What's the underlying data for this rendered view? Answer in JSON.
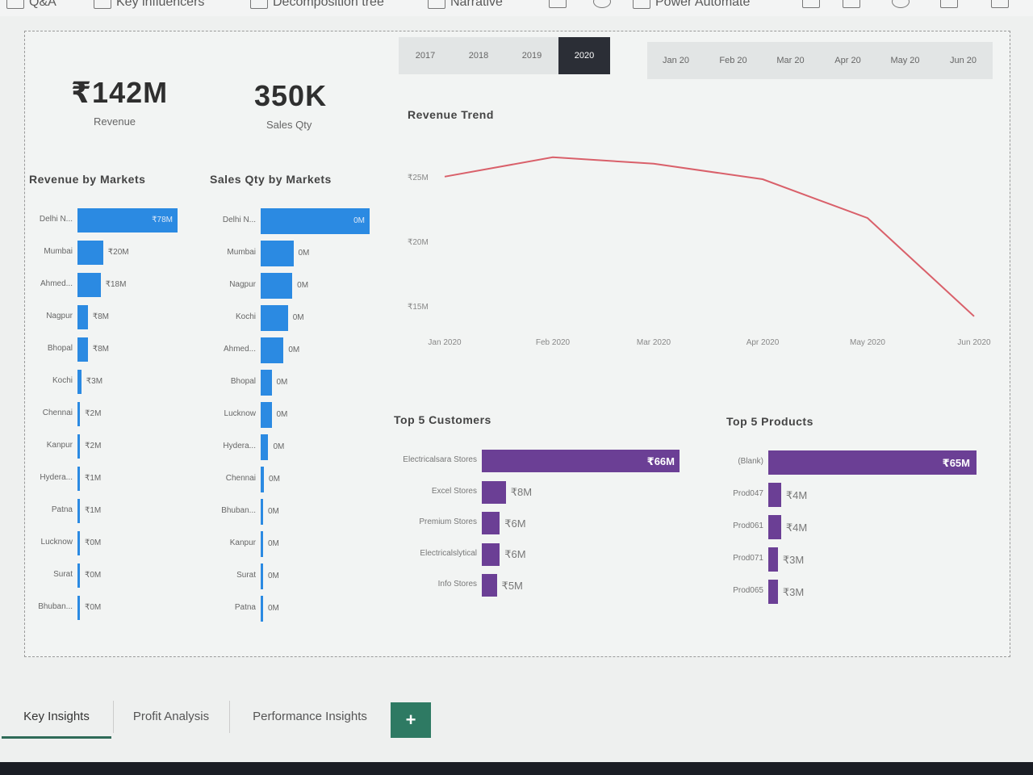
{
  "toolbar": [
    "Q&A",
    "Key influencers",
    "Decomposition tree",
    "Narrative",
    "Power Automate"
  ],
  "slicer_years": [
    "2017",
    "2018",
    "2019",
    "2020"
  ],
  "selected_year": "2020",
  "slicer_months": [
    "Jan 20",
    "Feb 20",
    "Mar 20",
    "Apr 20",
    "May 20",
    "Jun 20"
  ],
  "kpi": {
    "revenue_value": "₹142M",
    "revenue_label": "Revenue",
    "qty_value": "350K",
    "qty_label": "Sales Qty"
  },
  "revenue_by_markets": {
    "title": "Revenue by Markets",
    "rows": [
      {
        "label": "Delhi N...",
        "value": 78,
        "text": "₹78M"
      },
      {
        "label": "Mumbai",
        "value": 20,
        "text": "₹20M"
      },
      {
        "label": "Ahmed...",
        "value": 18,
        "text": "₹18M"
      },
      {
        "label": "Nagpur",
        "value": 8,
        "text": "₹8M"
      },
      {
        "label": "Bhopal",
        "value": 8,
        "text": "₹8M"
      },
      {
        "label": "Kochi",
        "value": 3,
        "text": "₹3M"
      },
      {
        "label": "Chennai",
        "value": 2,
        "text": "₹2M"
      },
      {
        "label": "Kanpur",
        "value": 2,
        "text": "₹2M"
      },
      {
        "label": "Hydera...",
        "value": 1,
        "text": "₹1M"
      },
      {
        "label": "Patna",
        "value": 1,
        "text": "₹1M"
      },
      {
        "label": "Lucknow",
        "value": 0.3,
        "text": "₹0M"
      },
      {
        "label": "Surat",
        "value": 0.3,
        "text": "₹0M"
      },
      {
        "label": "Bhuban...",
        "value": 0.3,
        "text": "₹0M"
      }
    ]
  },
  "qty_by_markets": {
    "title": "Sales Qty by Markets",
    "rows": [
      {
        "label": "Delhi N...",
        "value": 100,
        "text": "0M"
      },
      {
        "label": "Mumbai",
        "value": 30,
        "text": "0M"
      },
      {
        "label": "Nagpur",
        "value": 29,
        "text": "0M"
      },
      {
        "label": "Kochi",
        "value": 25,
        "text": "0M"
      },
      {
        "label": "Ahmed...",
        "value": 21,
        "text": "0M"
      },
      {
        "label": "Bhopal",
        "value": 10,
        "text": "0M"
      },
      {
        "label": "Lucknow",
        "value": 10,
        "text": "0M"
      },
      {
        "label": "Hydera...",
        "value": 7,
        "text": "0M"
      },
      {
        "label": "Chennai",
        "value": 3,
        "text": "0M"
      },
      {
        "label": "Bhuban...",
        "value": 2,
        "text": "0M"
      },
      {
        "label": "Kanpur",
        "value": 1,
        "text": "0M"
      },
      {
        "label": "Surat",
        "value": 1,
        "text": "0M"
      },
      {
        "label": "Patna",
        "value": 1,
        "text": "0M"
      }
    ]
  },
  "chart_data": {
    "type": "line",
    "title": "Revenue Trend",
    "x": [
      "Jan 2020",
      "Feb 2020",
      "Mar 2020",
      "Apr 2020",
      "May 2020",
      "Jun 2020"
    ],
    "y": [
      25.2,
      26.7,
      26.2,
      25.0,
      22.0,
      14.4
    ],
    "y_ticks": [
      "₹25M",
      "₹20M",
      "₹15M"
    ],
    "ylim": [
      14.2,
      27.5
    ],
    "color": "#d9606a"
  },
  "top_customers": {
    "title": "Top 5 Customers",
    "rows": [
      {
        "label": "Electricalsara Stores",
        "value": 66,
        "text": "₹66M"
      },
      {
        "label": "Excel Stores",
        "value": 8,
        "text": "₹8M"
      },
      {
        "label": "Premium Stores",
        "value": 6,
        "text": "₹6M"
      },
      {
        "label": "Electricalslytical",
        "value": 6,
        "text": "₹6M"
      },
      {
        "label": "Info Stores",
        "value": 5,
        "text": "₹5M"
      }
    ]
  },
  "top_products": {
    "title": "Top 5 Products",
    "rows": [
      {
        "label": "(Blank)",
        "value": 65,
        "text": "₹65M"
      },
      {
        "label": "Prod047",
        "value": 4,
        "text": "₹4M"
      },
      {
        "label": "Prod061",
        "value": 4,
        "text": "₹4M"
      },
      {
        "label": "Prod071",
        "value": 3,
        "text": "₹3M"
      },
      {
        "label": "Prod065",
        "value": 3,
        "text": "₹3M"
      }
    ]
  },
  "tabs": [
    "Key Insights",
    "Profit Analysis",
    "Performance Insights"
  ],
  "add_tab": "+",
  "colors": {
    "bar_blue": "#2b8ae2",
    "bar_purple": "#6b3f95",
    "line_red": "#d9606a",
    "selected": "#2b2e36",
    "tab_accent": "#2e7a63"
  }
}
